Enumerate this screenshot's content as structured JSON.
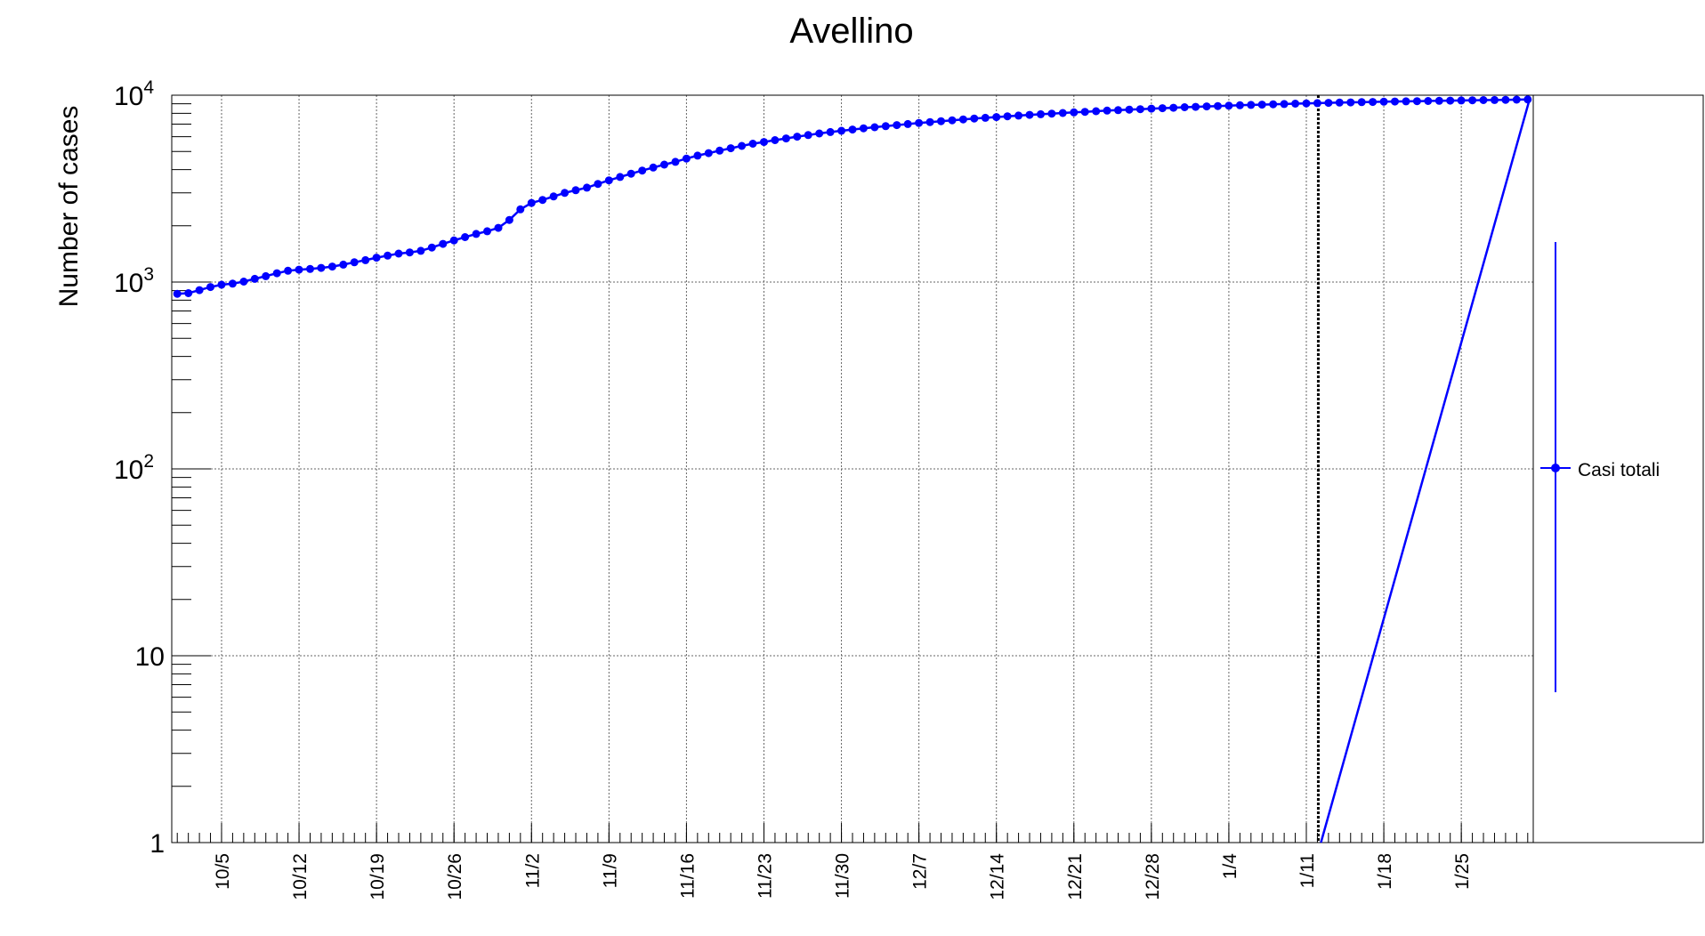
{
  "chart_data": {
    "type": "line",
    "title": "Avellino",
    "xlabel": "",
    "ylabel": "Number of cases",
    "y_scale": "log",
    "ylim": [
      1,
      10000
    ],
    "xlim": [
      "2020-10-01",
      "2021-01-31"
    ],
    "grid": true,
    "legend_position": "right panel",
    "x_ticks": [
      "10/5",
      "10/12",
      "10/19",
      "10/26",
      "11/2",
      "11/9",
      "11/16",
      "11/23",
      "11/30",
      "12/7",
      "12/14",
      "12/21",
      "12/28",
      "1/4",
      "1/11",
      "1/18",
      "1/25"
    ],
    "y_ticks": [
      {
        "value": 1,
        "base": "1",
        "exp": ""
      },
      {
        "value": 10,
        "base": "10",
        "exp": ""
      },
      {
        "value": 100,
        "base": "10",
        "exp": "2"
      },
      {
        "value": 1000,
        "base": "10",
        "exp": "3"
      },
      {
        "value": 10000,
        "base": "10",
        "exp": "4"
      }
    ],
    "vertical_marker": "2021-01-12",
    "series": [
      {
        "name": "Casi totali",
        "color": "#0000ff",
        "start_date": "2020-10-01",
        "values": [
          865,
          872,
          905,
          940,
          968,
          980,
          1005,
          1040,
          1075,
          1115,
          1150,
          1165,
          1175,
          1190,
          1210,
          1240,
          1275,
          1310,
          1350,
          1385,
          1420,
          1440,
          1470,
          1530,
          1600,
          1670,
          1740,
          1810,
          1870,
          1950,
          2150,
          2450,
          2650,
          2750,
          2870,
          3000,
          3100,
          3200,
          3350,
          3500,
          3650,
          3800,
          3950,
          4100,
          4250,
          4400,
          4580,
          4750,
          4900,
          5050,
          5200,
          5350,
          5500,
          5620,
          5750,
          5870,
          6000,
          6120,
          6240,
          6350,
          6450,
          6550,
          6650,
          6740,
          6830,
          6920,
          7010,
          7100,
          7180,
          7260,
          7340,
          7420,
          7500,
          7570,
          7640,
          7710,
          7780,
          7850,
          7910,
          7970,
          8030,
          8090,
          8150,
          8210,
          8270,
          8320,
          8370,
          8420,
          8470,
          8520,
          8570,
          8620,
          8665,
          8710,
          8750,
          8790,
          8830,
          8870,
          8905,
          8940,
          8975,
          9010,
          9040,
          9070,
          9100,
          9130,
          9155,
          9180,
          9205,
          9230,
          9250,
          9270,
          9290,
          9310,
          9330,
          9350,
          9370,
          9390,
          9410,
          9430,
          9450,
          9470,
          9490
        ],
        "drop_date": "2021-01-12"
      }
    ]
  }
}
